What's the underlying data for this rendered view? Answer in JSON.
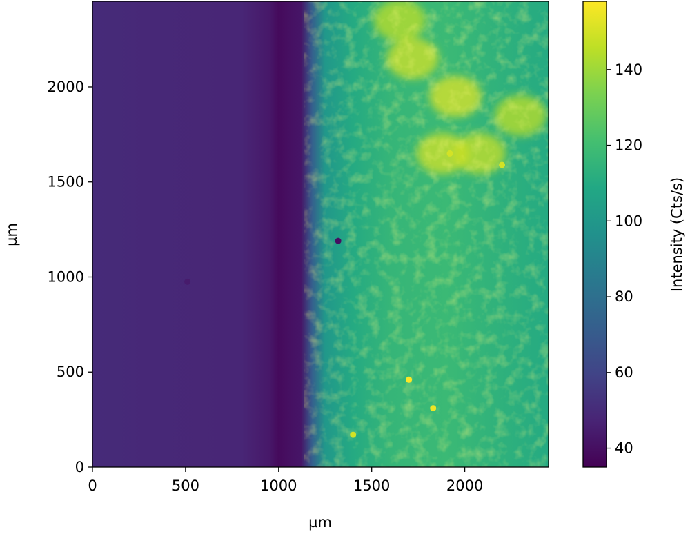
{
  "chart_data": {
    "type": "heatmap",
    "title": "",
    "xlabel": "µm",
    "ylabel": "µm",
    "xlim": [
      0,
      2450
    ],
    "ylim": [
      0,
      2450
    ],
    "x_ticks": [
      0,
      500,
      1000,
      1500,
      2000
    ],
    "y_ticks": [
      0,
      500,
      1000,
      1500,
      2000
    ],
    "colorbar": {
      "label": "Intensity (Cts/s)",
      "colormap": "viridis",
      "range": [
        35,
        158
      ],
      "ticks": [
        40,
        60,
        80,
        100,
        120,
        140
      ]
    },
    "profile_x": [
      0,
      300,
      800,
      950,
      1000,
      1050,
      1120,
      1180,
      1250,
      1400,
      1600,
      1900,
      2450
    ],
    "profile_mean": [
      50,
      49,
      48,
      43,
      38,
      40,
      42,
      72,
      100,
      110,
      116,
      118,
      110
    ],
    "hotspots": [
      {
        "x": 1720,
        "y": 2150,
        "value": 150
      },
      {
        "x": 1950,
        "y": 1950,
        "value": 152
      },
      {
        "x": 1880,
        "y": 1650,
        "value": 150
      },
      {
        "x": 2080,
        "y": 1650,
        "value": 148
      },
      {
        "x": 2300,
        "y": 1850,
        "value": 146
      },
      {
        "x": 1650,
        "y": 2350,
        "value": 146
      }
    ],
    "particles": [
      {
        "x": 1320,
        "y": 1190,
        "value": 40
      },
      {
        "x": 510,
        "y": 975,
        "value": 44
      },
      {
        "x": 1700,
        "y": 460,
        "value": 158
      },
      {
        "x": 1830,
        "y": 310,
        "value": 155
      },
      {
        "x": 1920,
        "y": 1650,
        "value": 150
      },
      {
        "x": 2200,
        "y": 1590,
        "value": 150
      },
      {
        "x": 1400,
        "y": 170,
        "value": 150
      }
    ]
  }
}
